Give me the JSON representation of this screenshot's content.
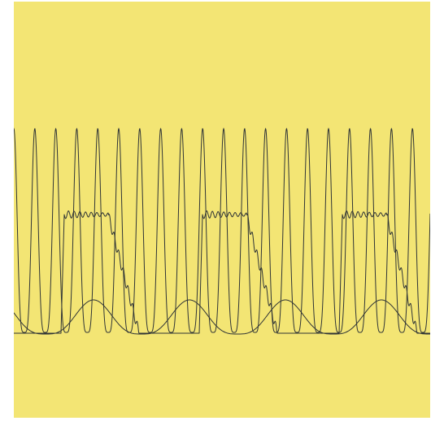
{
  "colors": {
    "background": "#f3e574",
    "stroke": "#2f3436"
  }
}
